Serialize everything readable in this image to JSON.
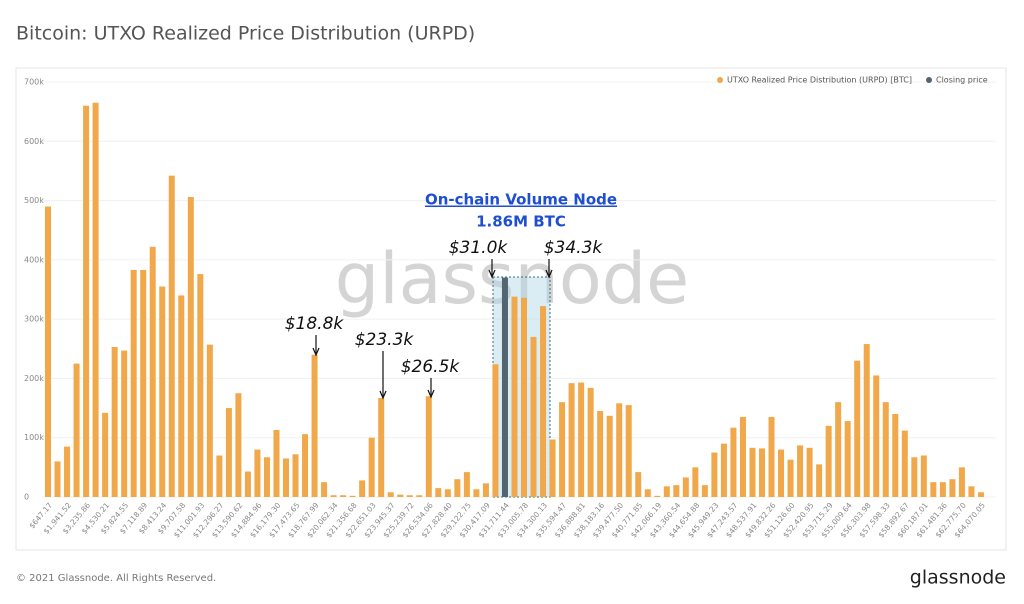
{
  "chart_data": {
    "type": "bar",
    "title": "Bitcoin: UTXO Realized Price Distribution (URPD)",
    "watermark": "glassnode",
    "footer": "© 2021 Glassnode. All Rights Reserved.",
    "brand": "glassnode",
    "legend_position": "top-right",
    "categories": [
      "$647.17",
      null,
      "$1,941.52",
      null,
      "$3,235.86",
      null,
      "$4,530.21",
      null,
      "$5,824.55",
      null,
      "$7,118.89",
      null,
      "$8,413.24",
      null,
      "$9,707.58",
      null,
      "$11,001.93",
      null,
      "$12,296.27",
      null,
      "$13,590.62",
      null,
      "$14,884.96",
      null,
      "$16,179.30",
      null,
      "$17,473.65",
      null,
      "$18,767.99",
      null,
      "$20,062.34",
      null,
      "$21,356.68",
      null,
      "$22,651.03",
      null,
      "$23,945.37",
      null,
      "$25,239.72",
      null,
      "$26,534.06",
      null,
      "$27,828.40",
      null,
      "$29,122.75",
      null,
      "$30,417.09",
      null,
      "$31,711.44",
      null,
      "$33,005.78",
      null,
      "$34,300.13",
      null,
      "$35,594.47",
      null,
      "$36,888.81",
      null,
      "$38,183.16",
      null,
      "$39,477.50",
      null,
      "$40,771.85",
      null,
      "$42,066.19",
      null,
      "$43,360.54",
      null,
      "$44,654.88",
      null,
      "$45,949.23",
      null,
      "$47,243.57",
      null,
      "$48,537.91",
      null,
      "$49,832.26",
      null,
      "$51,126.60",
      null,
      "$52,420.95",
      null,
      "$53,715.29",
      null,
      "$55,009.64",
      null,
      "$56,303.98",
      null,
      "$57,598.33",
      null,
      "$58,892.67",
      null,
      "$60,187.01",
      null,
      "$61,481.36",
      null,
      "$62,775.70",
      null,
      "$64,070.05"
    ],
    "series": [
      {
        "name": "UTXO Realized Price Distribution (URPD) [BTC]",
        "color": "#f0a84a",
        "values": [
          490000,
          60000,
          85000,
          225000,
          660000,
          665000,
          142000,
          253000,
          247000,
          383000,
          383000,
          422000,
          355000,
          542000,
          340000,
          506000,
          376000,
          257000,
          70000,
          150000,
          175000,
          43000,
          80000,
          67000,
          113000,
          65000,
          72000,
          106000,
          240000,
          25000,
          3000,
          3000,
          2000,
          28000,
          100000,
          167000,
          8000,
          4000,
          3000,
          3000,
          170000,
          15000,
          13000,
          30000,
          42000,
          13000,
          23000,
          224000,
          null,
          338000,
          336000,
          270000,
          322000,
          97000,
          160000,
          192000,
          193000,
          184000,
          145000,
          137000,
          158000,
          155000,
          42000,
          13000,
          2000,
          18000,
          20000,
          33000,
          50000,
          20000,
          75000,
          90000,
          117000,
          135000,
          83000,
          82000,
          135000,
          80000,
          63000,
          87000,
          83000,
          55000,
          120000,
          160000,
          128000,
          230000,
          258000,
          205000,
          160000,
          140000,
          112000,
          67000,
          70000,
          25000,
          25000,
          30000,
          50000,
          18000,
          8000
        ]
      },
      {
        "name": "Closing price",
        "color": "#536570",
        "values": [
          null,
          null,
          null,
          null,
          null,
          null,
          null,
          null,
          null,
          null,
          null,
          null,
          null,
          null,
          null,
          null,
          null,
          null,
          null,
          null,
          null,
          null,
          null,
          null,
          null,
          null,
          null,
          null,
          null,
          null,
          null,
          null,
          null,
          null,
          null,
          null,
          null,
          null,
          null,
          null,
          null,
          null,
          null,
          null,
          null,
          null,
          null,
          null,
          370000,
          null,
          null,
          null,
          null,
          null,
          null,
          null,
          null,
          null,
          null,
          null,
          null,
          null,
          null,
          null,
          null,
          null,
          null,
          null,
          null,
          null,
          null,
          null,
          null,
          null,
          null,
          null,
          null,
          null,
          null,
          null,
          null,
          null,
          null,
          null,
          null,
          null,
          null,
          null,
          null,
          null,
          null,
          null,
          null,
          null,
          null,
          null,
          null,
          null,
          null
        ]
      }
    ],
    "ylim": [
      0,
      700000
    ],
    "yticks": [
      0,
      {
        "value": 100000,
        "label": "100k"
      },
      {
        "value": 200000,
        "label": "200k"
      },
      {
        "value": 300000,
        "label": "300k"
      },
      {
        "value": 400000,
        "label": "400k"
      },
      {
        "value": 500000,
        "label": "500k"
      },
      {
        "value": 600000,
        "label": "600k"
      },
      {
        "value": 700000,
        "label": "700k"
      }
    ],
    "grid": true,
    "annotations": [
      "$18.8k",
      "$23.3k",
      "$26.5k",
      "$31.0k",
      "$34.3k"
    ],
    "callout": {
      "title": "On-chain Volume Node",
      "subtitle": "1.86M BTC"
    }
  }
}
